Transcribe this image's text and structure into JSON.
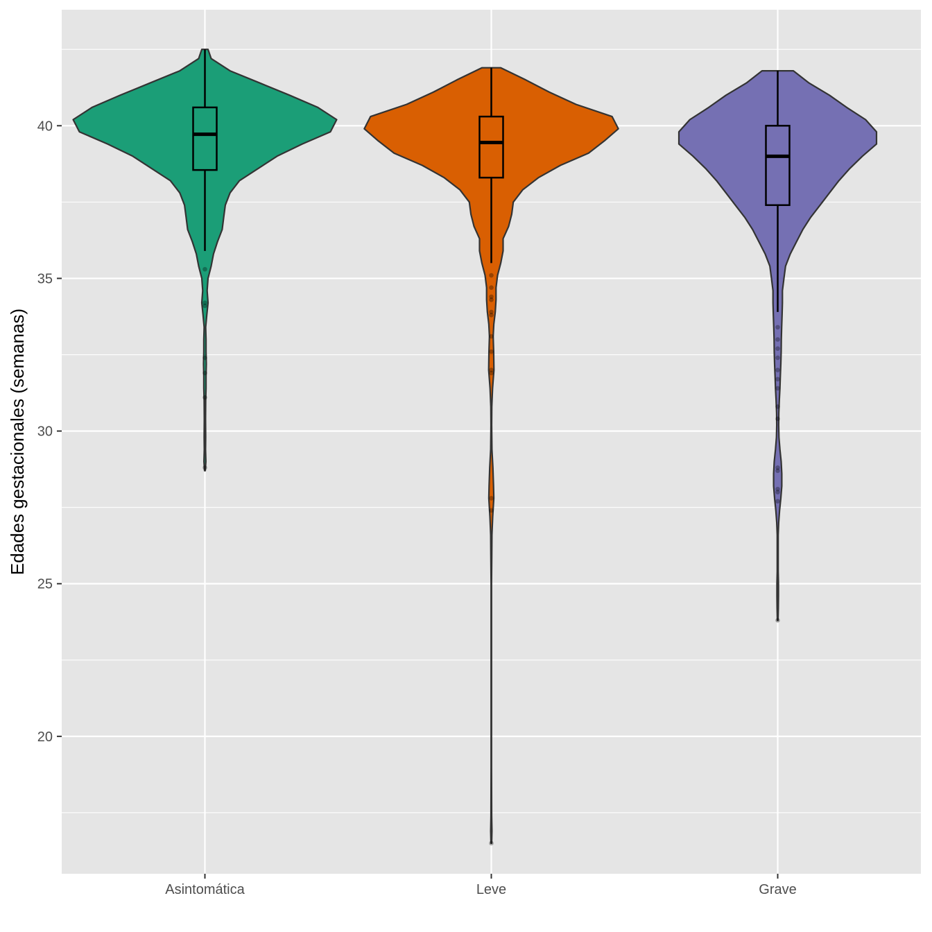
{
  "chart_data": {
    "type": "violin",
    "title": "",
    "xlabel": "",
    "ylabel": "Edades gestacionales (semanas)",
    "ylim": [
      15.5,
      43.8
    ],
    "y_ticks": [
      20,
      25,
      30,
      35,
      40
    ],
    "grid": true,
    "legend": "none",
    "panel_background": "#e5e5e5",
    "categories": [
      "Asintomática",
      "Leve",
      "Grave"
    ],
    "series": [
      {
        "category": "Asintomática",
        "color": "#1b9e77",
        "range": [
          28.7,
          42.5
        ],
        "box": {
          "q1": 38.55,
          "median": 39.72,
          "q3": 40.6,
          "whisker_low": 35.9,
          "whisker_high": 42.5
        },
        "outliers": [
          35.3,
          34.2,
          34.1,
          32.4,
          31.9,
          31.1,
          28.8
        ],
        "density": [
          [
            42.5,
            0.2
          ],
          [
            42.2,
            0.4
          ],
          [
            41.8,
            1.6
          ],
          [
            41.4,
            3.5
          ],
          [
            41.0,
            5.4
          ],
          [
            40.6,
            7.2
          ],
          [
            40.2,
            8.4
          ],
          [
            39.8,
            8.0
          ],
          [
            39.4,
            6.2
          ],
          [
            39.0,
            4.6
          ],
          [
            38.6,
            3.4
          ],
          [
            38.2,
            2.2
          ],
          [
            37.8,
            1.6
          ],
          [
            37.4,
            1.3
          ],
          [
            37.0,
            1.2
          ],
          [
            36.6,
            1.1
          ],
          [
            36.2,
            0.8
          ],
          [
            35.8,
            0.55
          ],
          [
            35.4,
            0.4
          ],
          [
            35.0,
            0.2
          ],
          [
            34.6,
            0.14
          ],
          [
            34.2,
            0.2
          ],
          [
            33.8,
            0.12
          ],
          [
            33.4,
            0.05
          ],
          [
            33.0,
            0.07
          ],
          [
            32.6,
            0.07
          ],
          [
            32.2,
            0.09
          ],
          [
            31.8,
            0.07
          ],
          [
            31.4,
            0.07
          ],
          [
            31.0,
            0.05
          ],
          [
            30.4,
            0.04
          ],
          [
            29.8,
            0.05
          ],
          [
            29.4,
            0.04
          ],
          [
            29.0,
            0.06
          ],
          [
            28.7,
            0.02
          ]
        ]
      },
      {
        "category": "Leve",
        "color": "#d95f02",
        "range": [
          16.5,
          41.9
        ],
        "box": {
          "q1": 38.3,
          "median": 39.45,
          "q3": 40.3,
          "whisker_low": 35.5,
          "whisker_high": 41.9
        },
        "outliers": [
          35.1,
          34.7,
          34.4,
          34.3,
          33.9,
          33.8,
          33.1,
          32.6,
          32.0,
          31.9,
          27.8,
          27.4,
          16.5
        ],
        "density": [
          [
            41.9,
            0.6
          ],
          [
            41.5,
            2.2
          ],
          [
            41.1,
            3.7
          ],
          [
            40.7,
            5.4
          ],
          [
            40.3,
            7.7
          ],
          [
            39.9,
            8.1
          ],
          [
            39.5,
            7.2
          ],
          [
            39.1,
            6.2
          ],
          [
            38.7,
            4.4
          ],
          [
            38.3,
            3.0
          ],
          [
            37.9,
            2.0
          ],
          [
            37.5,
            1.4
          ],
          [
            37.1,
            1.3
          ],
          [
            36.7,
            1.1
          ],
          [
            36.3,
            0.75
          ],
          [
            35.9,
            0.75
          ],
          [
            35.5,
            0.6
          ],
          [
            35.1,
            0.4
          ],
          [
            34.7,
            0.3
          ],
          [
            34.3,
            0.3
          ],
          [
            33.9,
            0.25
          ],
          [
            33.5,
            0.16
          ],
          [
            33.1,
            0.12
          ],
          [
            32.6,
            0.15
          ],
          [
            32.0,
            0.17
          ],
          [
            31.4,
            0.08
          ],
          [
            30.8,
            0.03
          ],
          [
            30.2,
            0.02
          ],
          [
            29.4,
            0.04
          ],
          [
            28.8,
            0.1
          ],
          [
            28.2,
            0.14
          ],
          [
            27.8,
            0.16
          ],
          [
            27.2,
            0.09
          ],
          [
            26.6,
            0.04
          ],
          [
            26.0,
            0.03
          ],
          [
            25.0,
            0.015
          ],
          [
            22.0,
            0.015
          ],
          [
            19.0,
            0.015
          ],
          [
            17.4,
            0.02
          ],
          [
            16.9,
            0.04
          ],
          [
            16.5,
            0.02
          ]
        ]
      },
      {
        "category": "Grave",
        "color": "#7570b3",
        "range": [
          23.8,
          41.8
        ],
        "box": {
          "q1": 37.4,
          "median": 39.0,
          "q3": 40.0,
          "whisker_low": 33.9,
          "whisker_high": 41.8
        },
        "outliers": [
          33.4,
          33.0,
          32.7,
          32.4,
          32.0,
          31.7,
          31.4,
          30.8,
          30.4,
          28.8,
          28.7,
          28.1,
          28.0,
          27.7,
          23.8
        ],
        "density": [
          [
            41.8,
            1.0
          ],
          [
            41.4,
            2.0
          ],
          [
            41.0,
            3.3
          ],
          [
            40.6,
            4.4
          ],
          [
            40.2,
            5.6
          ],
          [
            39.8,
            6.3
          ],
          [
            39.4,
            6.3
          ],
          [
            39.0,
            5.4
          ],
          [
            38.6,
            4.6
          ],
          [
            38.2,
            3.9
          ],
          [
            37.8,
            3.3
          ],
          [
            37.4,
            2.7
          ],
          [
            37.0,
            2.1
          ],
          [
            36.6,
            1.6
          ],
          [
            36.2,
            1.2
          ],
          [
            35.8,
            0.8
          ],
          [
            35.4,
            0.5
          ],
          [
            35.0,
            0.4
          ],
          [
            34.6,
            0.3
          ],
          [
            34.2,
            0.3
          ],
          [
            33.8,
            0.28
          ],
          [
            33.4,
            0.25
          ],
          [
            33.0,
            0.23
          ],
          [
            32.6,
            0.22
          ],
          [
            32.2,
            0.2
          ],
          [
            31.8,
            0.17
          ],
          [
            31.4,
            0.14
          ],
          [
            31.0,
            0.1
          ],
          [
            30.6,
            0.07
          ],
          [
            30.2,
            0.06
          ],
          [
            29.8,
            0.08
          ],
          [
            29.4,
            0.14
          ],
          [
            29.0,
            0.22
          ],
          [
            28.6,
            0.26
          ],
          [
            28.2,
            0.26
          ],
          [
            27.8,
            0.2
          ],
          [
            27.4,
            0.12
          ],
          [
            27.0,
            0.06
          ],
          [
            26.6,
            0.03
          ],
          [
            26.0,
            0.03
          ],
          [
            25.4,
            0.03
          ],
          [
            25.0,
            0.05
          ],
          [
            24.6,
            0.05
          ],
          [
            24.2,
            0.04
          ],
          [
            23.8,
            0.02
          ]
        ]
      }
    ]
  }
}
